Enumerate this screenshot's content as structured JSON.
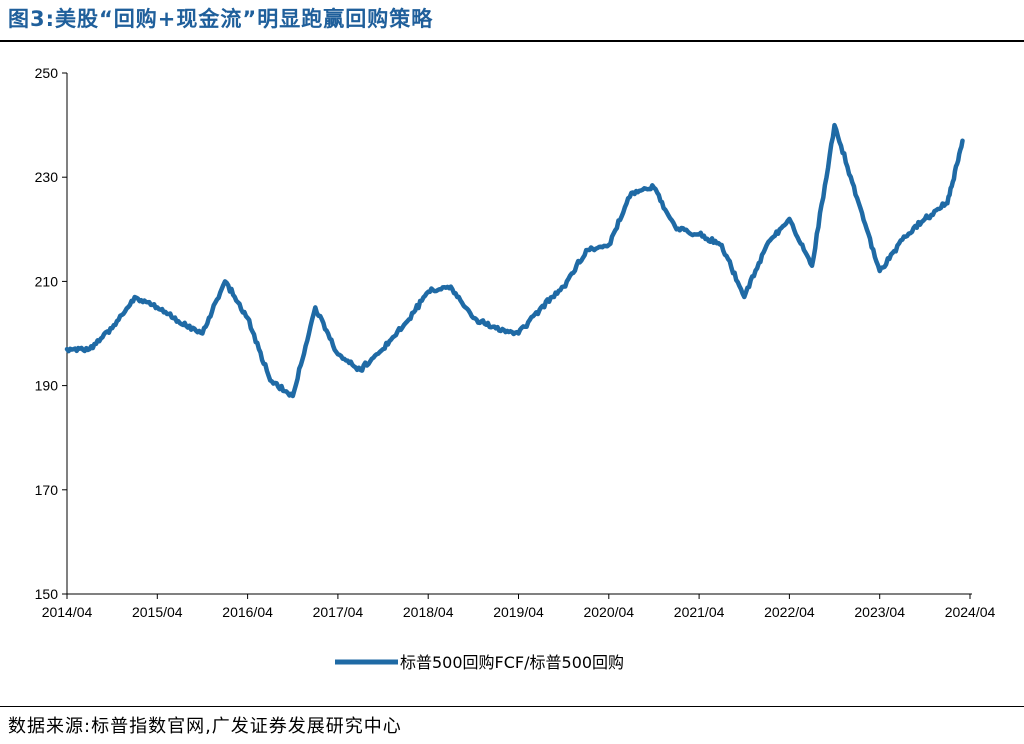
{
  "figure": {
    "title": "图3:美股“回购+现金流”明显跑赢回购策略",
    "source": "数据来源:标普指数官网,广发证券发展研究中心"
  },
  "colors": {
    "series": "#1f6aa5",
    "title": "#1f5f9b"
  },
  "chart_data": {
    "type": "line",
    "title": "",
    "xlabel": "",
    "ylabel": "",
    "ylim": [
      150,
      250
    ],
    "yticks": [
      "250",
      "230",
      "210",
      "190",
      "170",
      "150"
    ],
    "xticks": [
      "2014/04",
      "2015/04",
      "2016/04",
      "2017/04",
      "2018/04",
      "2019/04",
      "2020/04",
      "2021/04",
      "2022/04",
      "2023/04",
      "2024/04"
    ],
    "grid": false,
    "legend": "bottom-center",
    "series": [
      {
        "name": "标普500回购FCF/标普500回购",
        "x": [
          "2014-04",
          "2014-07",
          "2014-10",
          "2015-01",
          "2015-04",
          "2015-07",
          "2015-10",
          "2016-01",
          "2016-04",
          "2016-07",
          "2016-10",
          "2017-01",
          "2017-04",
          "2017-07",
          "2017-10",
          "2018-01",
          "2018-04",
          "2018-07",
          "2018-10",
          "2019-01",
          "2019-04",
          "2019-07",
          "2019-10",
          "2020-01",
          "2020-04",
          "2020-07",
          "2020-10",
          "2021-01",
          "2021-04",
          "2021-07",
          "2021-10",
          "2022-01",
          "2022-04",
          "2022-07",
          "2022-10",
          "2023-01",
          "2023-04",
          "2023-07",
          "2023-10",
          "2024-01",
          "2024-03"
        ],
        "y": [
          197,
          197,
          201,
          207,
          205,
          202,
          200,
          210,
          203,
          191,
          188,
          205,
          196,
          193,
          197,
          202,
          208,
          209,
          203,
          201,
          200,
          205,
          209,
          216,
          217,
          227,
          228,
          220,
          219,
          217,
          207,
          217,
          222,
          213,
          240,
          226,
          212,
          218,
          222,
          225,
          237
        ]
      }
    ]
  },
  "legend": {
    "label": "标普500回购FCF/标普500回购"
  }
}
